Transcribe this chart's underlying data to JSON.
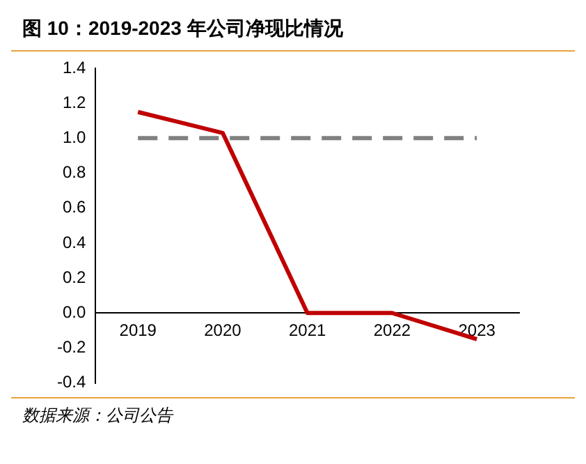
{
  "chart_data": {
    "type": "line",
    "title": "图 10：2019-2023 年公司净现比情况",
    "annotations": [
      "数据来源：公司公告"
    ],
    "categories": [
      "2019",
      "2020",
      "2021",
      "2022",
      "2023"
    ],
    "series": [
      {
        "color": "#c00000",
        "values": [
          1.15,
          1.03,
          0.0,
          0.0,
          -0.15
        ]
      }
    ],
    "ylim": [
      -0.4,
      1.4
    ],
    "yticks": [
      {
        "value": -0.4,
        "label": "-0.4"
      },
      {
        "value": -0.2,
        "label": "-0.2"
      },
      {
        "value": 0,
        "label": "0.0"
      },
      {
        "value": 0.2,
        "label": "0.2"
      },
      {
        "value": 0.4,
        "label": "0.4"
      },
      {
        "value": 0.6,
        "label": "0.6"
      },
      {
        "value": 0.8,
        "label": "0.8"
      },
      {
        "value": 1.0,
        "label": "1.0"
      },
      {
        "value": 1.2,
        "label": "1.2"
      },
      {
        "value": 1.4,
        "label": "1.4"
      }
    ],
    "ref_lines": [
      {
        "axis": "y",
        "value": 1.0,
        "color": "#808080",
        "line_style": "dashed"
      }
    ],
    "grid": false,
    "legend": false,
    "marker": "none",
    "line_style": "solid"
  }
}
